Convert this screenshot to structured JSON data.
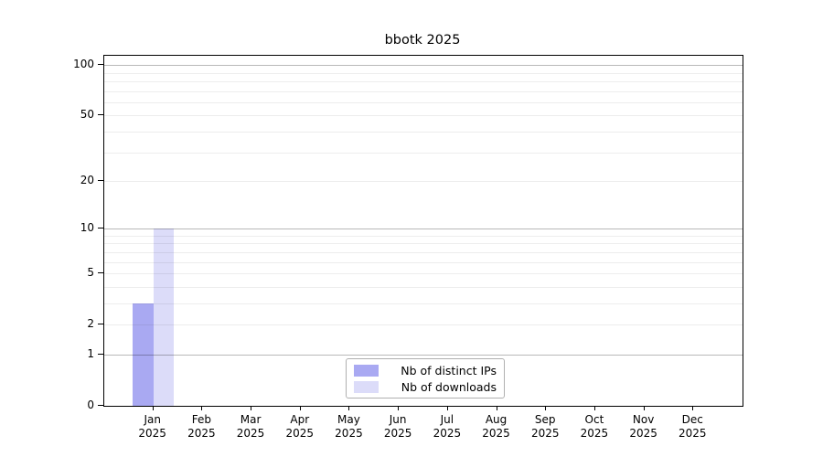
{
  "chart_data": {
    "type": "bar",
    "title": "bbotk 2025",
    "year": "2025",
    "months": [
      "Jan",
      "Feb",
      "Mar",
      "Apr",
      "May",
      "Jun",
      "Jul",
      "Aug",
      "Sep",
      "Oct",
      "Nov",
      "Dec"
    ],
    "series": [
      {
        "name": "Nb of distinct IPs",
        "color": "#a9a9f2",
        "values": [
          3,
          0,
          0,
          0,
          0,
          0,
          0,
          0,
          0,
          0,
          0,
          0
        ]
      },
      {
        "name": "Nb of downloads",
        "color": "#dcdcf9",
        "values": [
          10,
          0,
          0,
          0,
          0,
          0,
          0,
          0,
          0,
          0,
          0,
          0
        ]
      }
    ],
    "y_axis": {
      "scale": "log1p",
      "tick_values": [
        100,
        50,
        20,
        10,
        5,
        2,
        1,
        0
      ],
      "major_grid_values": [
        1,
        10,
        100
      ],
      "minor_grid_values": [
        2,
        3,
        4,
        5,
        6,
        7,
        8,
        9,
        20,
        30,
        40,
        50,
        60,
        70,
        80,
        90
      ],
      "range": [
        0,
        113.5
      ]
    },
    "grid": true,
    "legend_position": "lower center",
    "colors": {
      "axis": "#000000",
      "legend_border": "#b0b0b0"
    }
  }
}
